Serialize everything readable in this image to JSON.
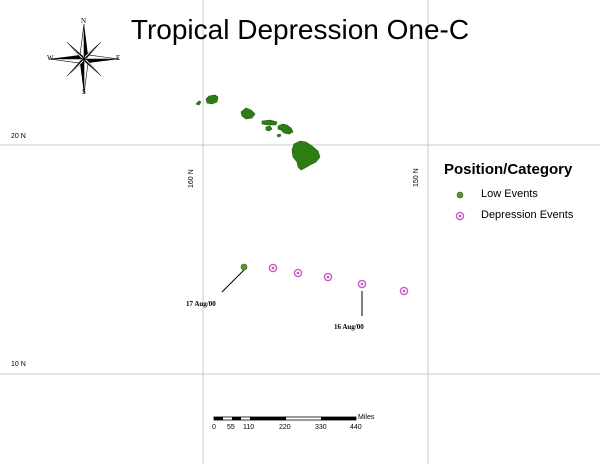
{
  "map": {
    "title": "Tropical Depression One-C",
    "gridlines": {
      "latitudes": [
        {
          "label": "20 N",
          "value": 20
        },
        {
          "label": "10 N",
          "value": 10
        }
      ],
      "longitudes": [
        {
          "label": "160 N",
          "value": -160
        },
        {
          "label": "150 N",
          "value": -150
        }
      ]
    },
    "compass": {
      "north": "N",
      "south": "S",
      "east": "E",
      "west": "W"
    },
    "land_color": "#2e7d13",
    "grid_color": "#c8c8c8",
    "track": [
      {
        "category": "low",
        "label": "17 Aug/00"
      },
      {
        "category": "depression",
        "label": ""
      },
      {
        "category": "depression",
        "label": ""
      },
      {
        "category": "depression",
        "label": ""
      },
      {
        "category": "depression",
        "label": "16 Aug/00"
      },
      {
        "category": "depression",
        "label": ""
      }
    ],
    "legend": {
      "title": "Position/Category",
      "items": [
        {
          "label": "Low Events",
          "color": "#4f9a2a",
          "symbol": "green-dot"
        },
        {
          "label": "Depression Events",
          "color": "#c45ec0",
          "symbol": "magenta-ring-dot"
        }
      ]
    },
    "scale_bar": {
      "unit": "Miles",
      "ticks": [
        "0",
        "55",
        "110",
        "220",
        "330",
        "440"
      ]
    }
  }
}
